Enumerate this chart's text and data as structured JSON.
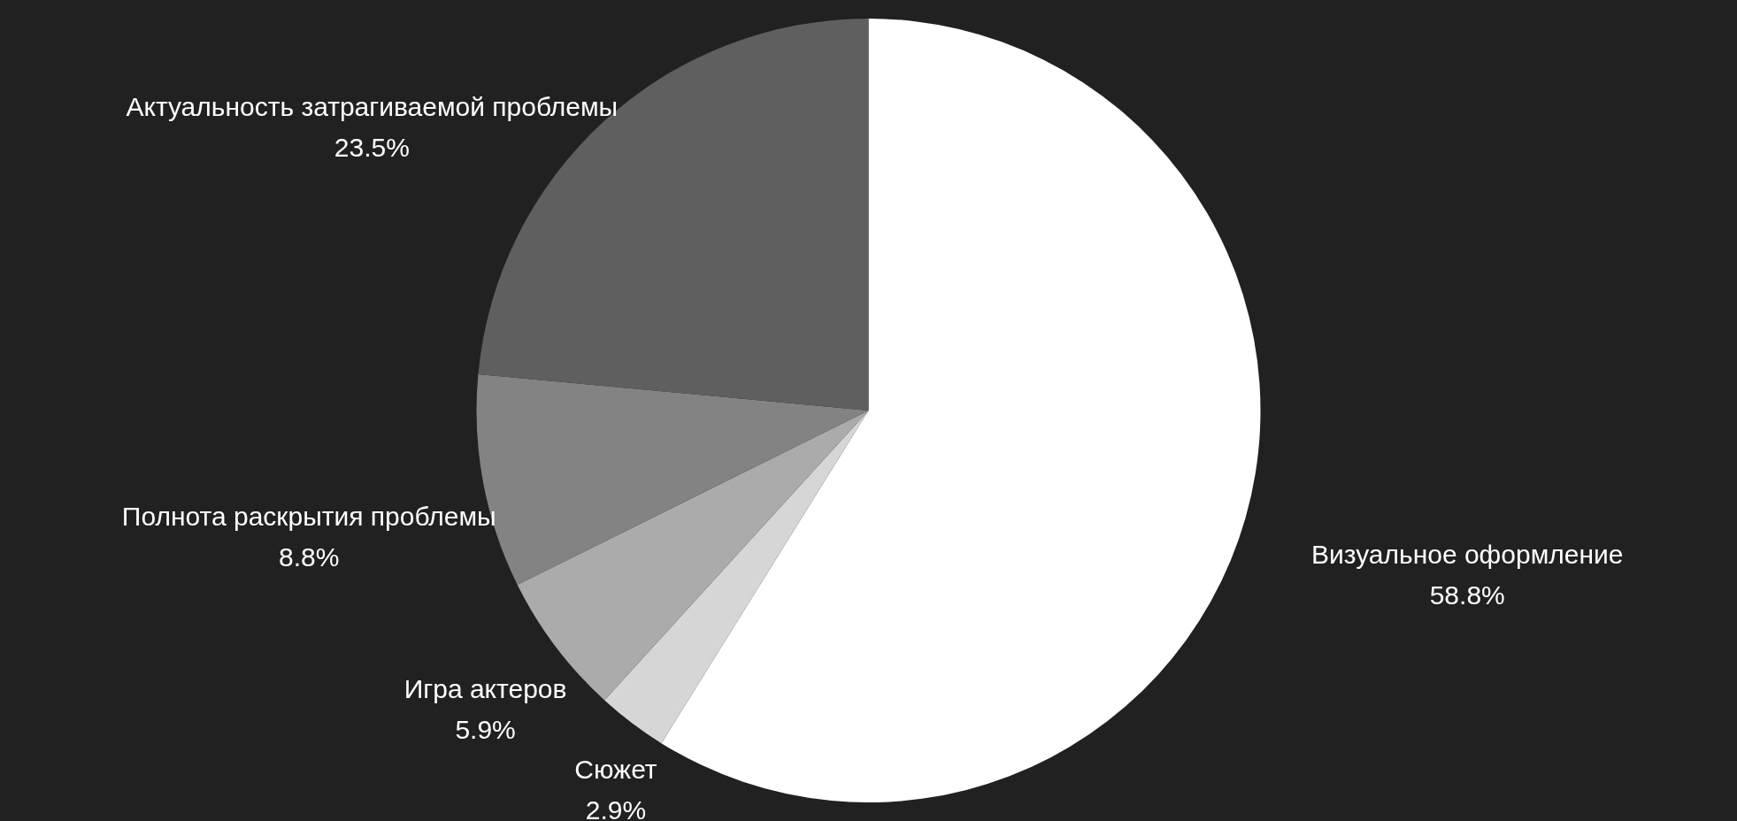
{
  "chart_data": {
    "type": "pie",
    "categories": [
      "Визуальное оформление",
      "Сюжет",
      "Игра актеров",
      "Полнота раскрытия проблемы",
      "Актуальность затрагиваемой проблемы"
    ],
    "values": [
      58.8,
      2.9,
      5.9,
      8.8,
      23.5
    ],
    "value_labels": [
      "58.8%",
      "2.9%",
      "5.9%",
      "8.8%",
      "23.5%"
    ],
    "colors": [
      "#ffffff",
      "#d6d6d6",
      "#ababab",
      "#838383",
      "#5f5f5f"
    ]
  }
}
